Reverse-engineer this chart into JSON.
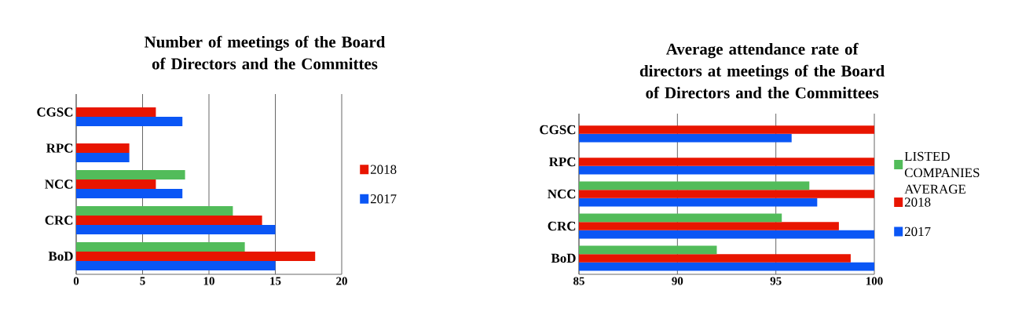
{
  "chart_data": [
    {
      "type": "bar",
      "orientation": "horizontal",
      "title": "Number of meetings of the Board of Directors and the Committes",
      "categories": [
        "CGSC",
        "RPC",
        "NCC",
        "CRC",
        "BoD"
      ],
      "series": [
        {
          "color": "#52bc5a",
          "values": [
            null,
            null,
            8.2,
            11.8,
            12.7
          ]
        },
        {
          "name": "2018",
          "color": "#e81500",
          "values": [
            6,
            4,
            6,
            14,
            18
          ]
        },
        {
          "name": "2017",
          "color": "#0a56f5",
          "values": [
            8,
            4,
            8,
            15,
            15
          ]
        }
      ],
      "xlim": [
        0,
        20
      ],
      "xticks": [
        0,
        5,
        10,
        15,
        20
      ],
      "grid": "x",
      "legend": "right"
    },
    {
      "type": "bar",
      "orientation": "horizontal",
      "title": "Average attendance rate of directors at meetings of the Board of Directors and the Committees",
      "categories": [
        "CGSC",
        "RPC",
        "NCC",
        "CRC",
        "BoD"
      ],
      "series": [
        {
          "name": "LISTED COMPANIES AVERAGE",
          "color": "#52bc5a",
          "values": [
            null,
            null,
            96.7,
            95.3,
            92
          ]
        },
        {
          "name": "2018",
          "color": "#e81500",
          "values": [
            100,
            100,
            100,
            98.2,
            98.8
          ]
        },
        {
          "name": "2017",
          "color": "#0a56f5",
          "values": [
            95.8,
            100,
            97.1,
            100,
            100
          ]
        }
      ],
      "xlim": [
        85,
        100
      ],
      "xticks": [
        85,
        90,
        95,
        100
      ],
      "grid": "x",
      "legend": "right"
    }
  ]
}
